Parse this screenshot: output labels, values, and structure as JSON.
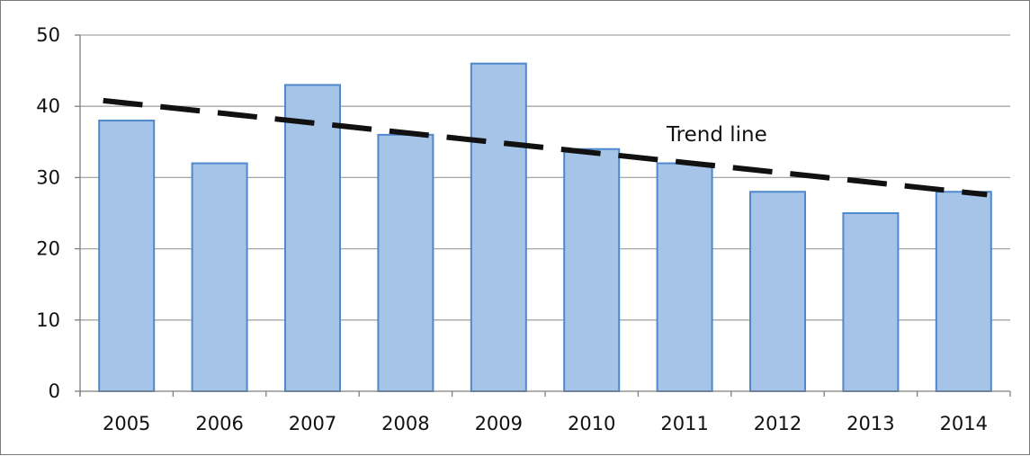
{
  "chart_data": {
    "type": "bar",
    "categories": [
      "2005",
      "2006",
      "2007",
      "2008",
      "2009",
      "2010",
      "2011",
      "2012",
      "2013",
      "2014"
    ],
    "values": [
      38,
      32,
      43,
      36,
      46,
      34,
      32,
      28,
      25,
      28
    ],
    "ylim": [
      0,
      50
    ],
    "yticks": [
      0,
      10,
      20,
      30,
      40,
      50
    ],
    "grid": true,
    "legend": "none",
    "trend_line": {
      "label": "Trend line",
      "start": {
        "x": "2005",
        "y": 40.8
      },
      "end": {
        "x": "2014",
        "y": 27.6
      },
      "style": "dashed"
    },
    "colors": {
      "bar_fill": "#a6c4e8",
      "bar_stroke": "#4f88cc",
      "trend": "#111111",
      "grid": "#a6a6a6",
      "axis": "#7f7f7f"
    }
  }
}
